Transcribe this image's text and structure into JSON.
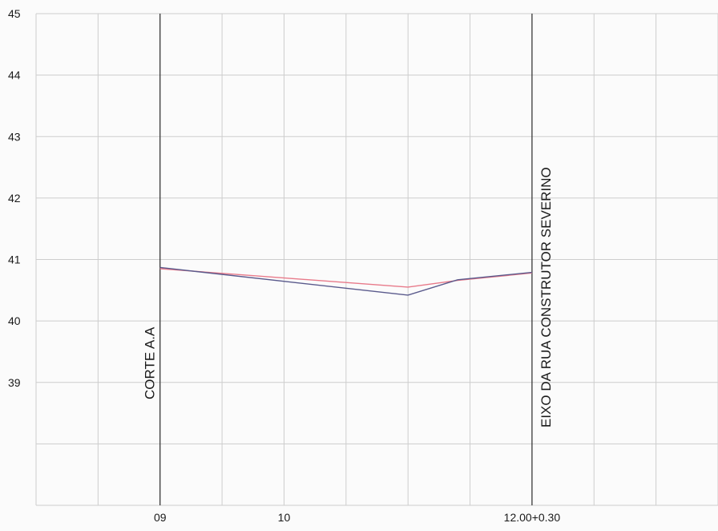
{
  "chart_data": {
    "type": "line",
    "x_ticks": [
      {
        "x": 0,
        "label": "09"
      },
      {
        "x": 1,
        "label": "10"
      },
      {
        "x": 3,
        "label": "12.00+0.30"
      }
    ],
    "y_ticks": [
      {
        "y": 45,
        "label": "45"
      },
      {
        "y": 44,
        "label": "44"
      },
      {
        "y": 43,
        "label": "43"
      },
      {
        "y": 42,
        "label": "42"
      },
      {
        "y": 41,
        "label": "41"
      },
      {
        "y": 40,
        "label": "40"
      },
      {
        "y": 39,
        "label": "39"
      }
    ],
    "xlim": [
      -1,
      4.5
    ],
    "ylim": [
      37,
      45
    ],
    "grid": true,
    "series": [
      {
        "color": "#5a5a8c",
        "points": [
          [
            0,
            40.87
          ],
          [
            2.0,
            40.42
          ],
          [
            2.4,
            40.67
          ],
          [
            3.0,
            40.79
          ]
        ]
      },
      {
        "color": "#e87a8a",
        "points": [
          [
            0,
            40.85
          ],
          [
            2.0,
            40.55
          ],
          [
            2.4,
            40.66
          ],
          [
            3.0,
            40.78
          ]
        ]
      }
    ],
    "markers": [
      {
        "x": 0,
        "label": "CORTE  A.A"
      },
      {
        "x": 3,
        "label": "EIXO DA RUA CONSTRUTOR SEVERINO"
      }
    ],
    "colors": {
      "grid": "#cdcdcd",
      "marker_line": "#2a2a2a"
    }
  }
}
